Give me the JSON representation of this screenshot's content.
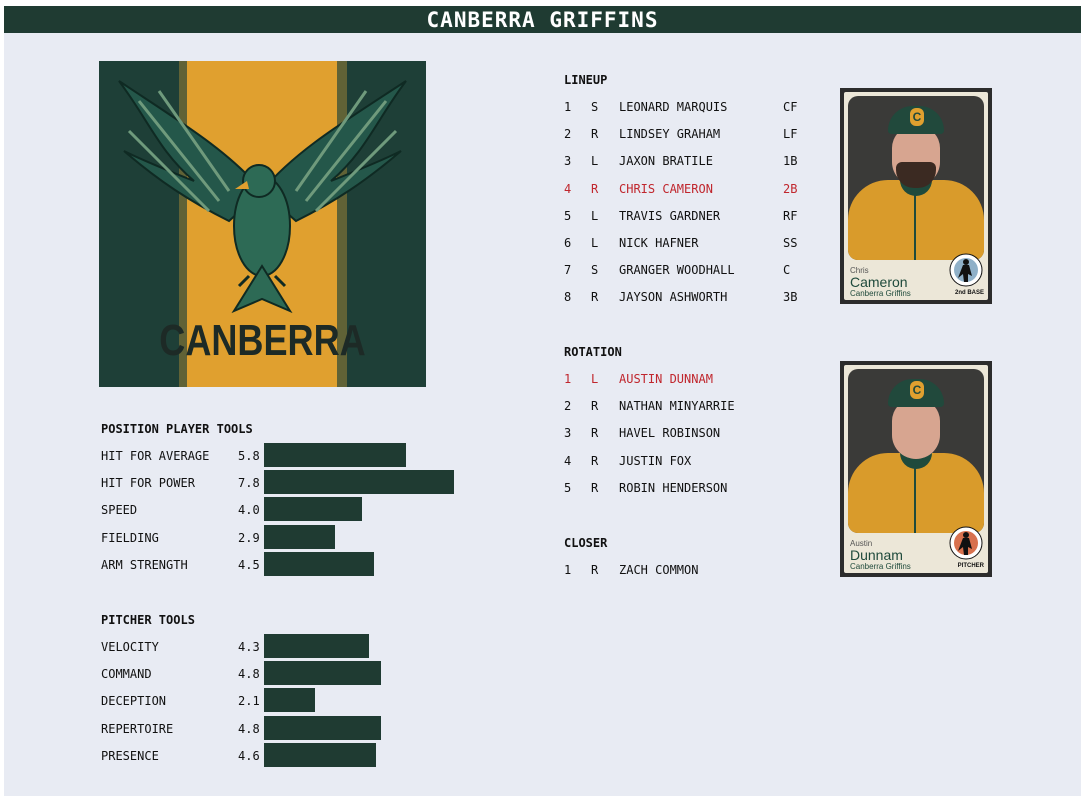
{
  "title": "CANBERRA GRIFFINS",
  "logo": {
    "text": "CANBERRA",
    "icon": "griffin-logo"
  },
  "position_tools": {
    "heading": "POSITION PLAYER TOOLS",
    "items": [
      {
        "label": "HIT FOR AVERAGE",
        "value": "5.8",
        "level": 5.8
      },
      {
        "label": "HIT FOR POWER",
        "value": "7.8",
        "level": 7.8
      },
      {
        "label": "SPEED",
        "value": "4.0",
        "level": 4.0
      },
      {
        "label": "FIELDING",
        "value": "2.9",
        "level": 2.9
      },
      {
        "label": "ARM STRENGTH",
        "value": "4.5",
        "level": 4.5
      }
    ]
  },
  "pitcher_tools": {
    "heading": "PITCHER TOOLS",
    "items": [
      {
        "label": "VELOCITY",
        "value": "4.3",
        "level": 4.3
      },
      {
        "label": "COMMAND",
        "value": "4.8",
        "level": 4.8
      },
      {
        "label": "DECEPTION",
        "value": "2.1",
        "level": 2.1
      },
      {
        "label": "REPERTOIRE",
        "value": "4.8",
        "level": 4.8
      },
      {
        "label": "PRESENCE",
        "value": "4.6",
        "level": 4.6
      }
    ]
  },
  "lineup": {
    "heading": "LINEUP",
    "rows": [
      {
        "num": "1",
        "hand": "S",
        "name": "LEONARD MARQUIS",
        "pos": "CF",
        "highlight": false
      },
      {
        "num": "2",
        "hand": "R",
        "name": "LINDSEY GRAHAM",
        "pos": "LF",
        "highlight": false
      },
      {
        "num": "3",
        "hand": "L",
        "name": "JAXON BRATILE",
        "pos": "1B",
        "highlight": false
      },
      {
        "num": "4",
        "hand": "R",
        "name": "CHRIS CAMERON",
        "pos": "2B",
        "highlight": true
      },
      {
        "num": "5",
        "hand": "L",
        "name": "TRAVIS GARDNER",
        "pos": "RF",
        "highlight": false
      },
      {
        "num": "6",
        "hand": "L",
        "name": "NICK HAFNER",
        "pos": "SS",
        "highlight": false
      },
      {
        "num": "7",
        "hand": "S",
        "name": "GRANGER WOODHALL",
        "pos": "C",
        "highlight": false
      },
      {
        "num": "8",
        "hand": "R",
        "name": "JAYSON ASHWORTH",
        "pos": "3B",
        "highlight": false
      }
    ]
  },
  "rotation": {
    "heading": "ROTATION",
    "rows": [
      {
        "num": "1",
        "hand": "L",
        "name": "AUSTIN DUNNAM",
        "highlight": true
      },
      {
        "num": "2",
        "hand": "R",
        "name": "NATHAN MINYARRIE",
        "highlight": false
      },
      {
        "num": "3",
        "hand": "R",
        "name": "HAVEL ROBINSON",
        "highlight": false
      },
      {
        "num": "4",
        "hand": "R",
        "name": "JUSTIN FOX",
        "highlight": false
      },
      {
        "num": "5",
        "hand": "R",
        "name": "ROBIN HENDERSON",
        "highlight": false
      }
    ]
  },
  "closer": {
    "heading": "CLOSER",
    "rows": [
      {
        "num": "1",
        "hand": "R",
        "name": "ZACH COMMON",
        "highlight": false
      }
    ]
  },
  "cards": [
    {
      "first": "Chris",
      "last": "Cameron",
      "team": "Canberra Griffins",
      "position": "2nd BASE",
      "beard": true,
      "badge_color": "#8fb0c8",
      "icon": "fielder-icon"
    },
    {
      "first": "Austin",
      "last": "Dunnam",
      "team": "Canberra Griffins",
      "position": "PITCHER",
      "beard": false,
      "badge_color": "#d8714e",
      "icon": "pitcher-icon"
    }
  ],
  "colors": {
    "bar": "#1f3b32",
    "highlight": "#c0262d",
    "accent": "#e0a02f",
    "panel": "#e8ebf3"
  }
}
